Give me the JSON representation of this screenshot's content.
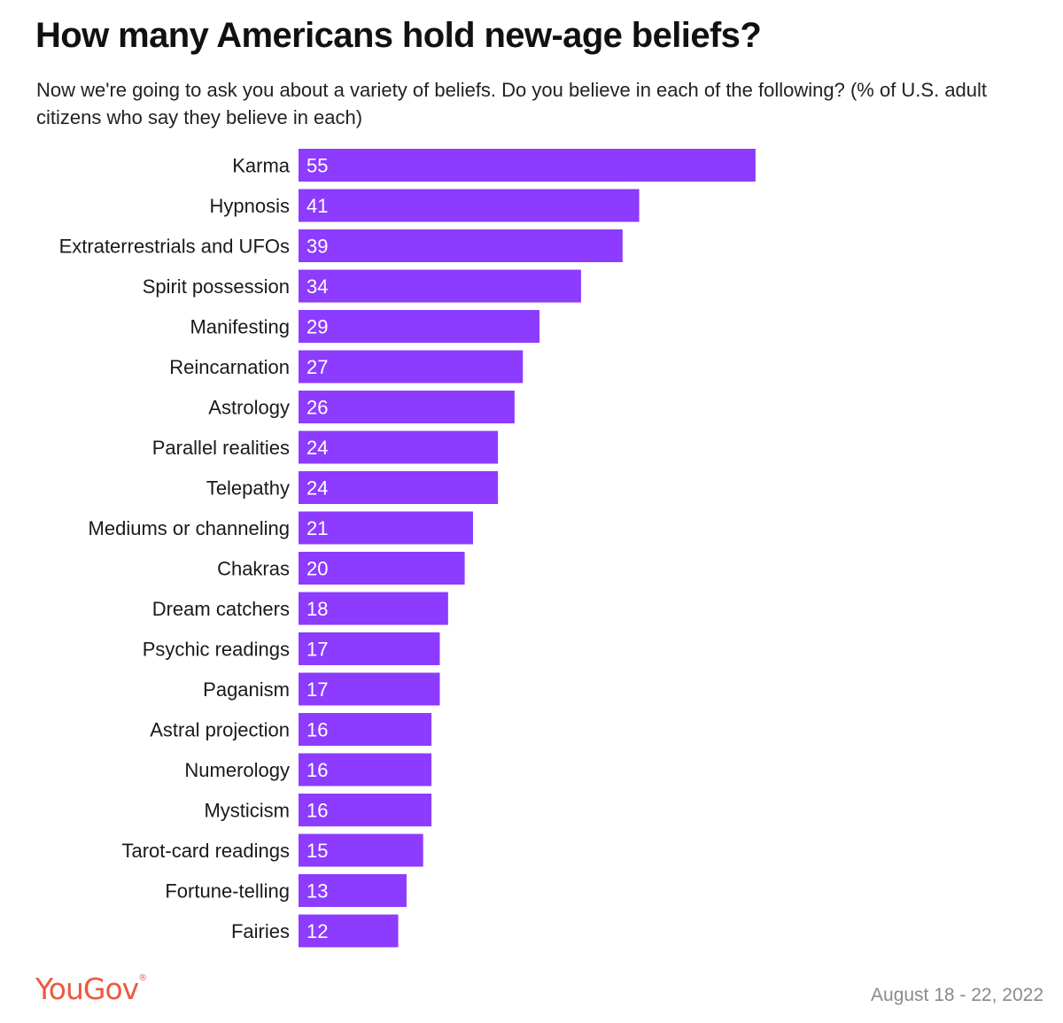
{
  "title": "How many Americans hold new-age beliefs?",
  "subtitle": "Now we're going to ask you about a variety of beliefs. Do you believe in each of the following? (% of U.S. adult citizens who say they believe in each)",
  "footer": {
    "logo_text": "YouGov",
    "logo_mark": "®",
    "date": "August 18 - 22, 2022"
  },
  "colors": {
    "bar": "#8c3bff",
    "logo": "#ec5a3c",
    "date": "#8a8a8a"
  },
  "chart_data": {
    "type": "bar",
    "orientation": "horizontal",
    "categories": [
      "Karma",
      "Hypnosis",
      "Extraterrestrials and UFOs",
      "Spirit possession",
      "Manifesting",
      "Reincarnation",
      "Astrology",
      "Parallel realities",
      "Telepathy",
      "Mediums or channeling",
      "Chakras",
      "Dream catchers",
      "Psychic readings",
      "Paganism",
      "Astral projection",
      "Numerology",
      "Mysticism",
      "Tarot-card readings",
      "Fortune-telling",
      "Fairies"
    ],
    "values": [
      55,
      41,
      39,
      34,
      29,
      27,
      26,
      24,
      24,
      21,
      20,
      18,
      17,
      17,
      16,
      16,
      16,
      15,
      13,
      12
    ],
    "value_labels": [
      "55",
      "41",
      "39",
      "34",
      "29",
      "27",
      "26",
      "24",
      "24",
      "21",
      "20",
      "18",
      "17",
      "17",
      "16",
      "16",
      "16",
      "15",
      "13",
      "12"
    ],
    "unit": "%",
    "axis_visible": false,
    "grid": false,
    "legend": "none"
  }
}
